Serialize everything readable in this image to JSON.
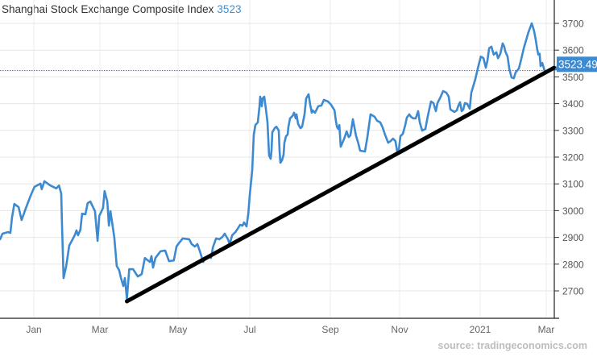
{
  "chart_data": {
    "type": "line",
    "title": "Shanghai Stock Exchange Composite Index",
    "title_value": "3523",
    "last_value_label": "3523.49",
    "last_value": 3523.49,
    "source": "source: tradingeconomics.com",
    "x_unit": "months since Jan 2020",
    "x_ticks": [
      {
        "m": 0,
        "label": "Jan"
      },
      {
        "m": 2,
        "label": "Mar"
      },
      {
        "m": 4,
        "label": "May"
      },
      {
        "m": 6,
        "label": "Jul"
      },
      {
        "m": 8,
        "label": "Sep"
      },
      {
        "m": 10,
        "label": "Nov"
      },
      {
        "m": 12,
        "label": "2021"
      },
      {
        "m": 14,
        "label": "Mar"
      }
    ],
    "y_ticks": [
      2700,
      2800,
      2900,
      3000,
      3100,
      3200,
      3300,
      3400,
      3500,
      3600,
      3700
    ],
    "ylim": [
      2596,
      3790
    ],
    "grid": true,
    "colors": {
      "series": "#3d8ad0",
      "trend": "#000000",
      "last_line": "#4d4dff",
      "label_bg": "#3d8ad0"
    },
    "series": [
      {
        "name": "Shanghai Composite",
        "points": [
          [
            -1.02,
            2893
          ],
          [
            -0.95,
            2914
          ],
          [
            -0.78,
            2920
          ],
          [
            -0.71,
            2917
          ],
          [
            -0.66,
            2974
          ],
          [
            -0.59,
            3025
          ],
          [
            -0.46,
            3013
          ],
          [
            -0.37,
            2965
          ],
          [
            -0.24,
            3010
          ],
          [
            -0.1,
            3055
          ],
          [
            0.02,
            3089
          ],
          [
            0.2,
            3101
          ],
          [
            0.24,
            3080
          ],
          [
            0.32,
            3110
          ],
          [
            0.49,
            3095
          ],
          [
            0.68,
            3083
          ],
          [
            0.76,
            3094
          ],
          [
            0.83,
            3064
          ],
          [
            0.85,
            2965
          ],
          [
            0.9,
            2748
          ],
          [
            0.98,
            2793
          ],
          [
            1.07,
            2869
          ],
          [
            1.24,
            2908
          ],
          [
            1.29,
            2926
          ],
          [
            1.34,
            2908
          ],
          [
            1.41,
            2929
          ],
          [
            1.46,
            2989
          ],
          [
            1.56,
            2986
          ],
          [
            1.63,
            3028
          ],
          [
            1.71,
            3034
          ],
          [
            1.85,
            2998
          ],
          [
            1.93,
            2887
          ],
          [
            1.98,
            2980
          ],
          [
            2.08,
            3010
          ],
          [
            2.12,
            3073
          ],
          [
            2.19,
            3034
          ],
          [
            2.23,
            2944
          ],
          [
            2.27,
            2998
          ],
          [
            2.31,
            2959
          ],
          [
            2.37,
            2899
          ],
          [
            2.43,
            2793
          ],
          [
            2.49,
            2778
          ],
          [
            2.54,
            2748
          ],
          [
            2.6,
            2718
          ],
          [
            2.64,
            2748
          ],
          [
            2.69,
            2670
          ],
          [
            2.75,
            2781
          ],
          [
            2.85,
            2781
          ],
          [
            2.97,
            2754
          ],
          [
            3.07,
            2763
          ],
          [
            3.15,
            2823
          ],
          [
            3.28,
            2808
          ],
          [
            3.32,
            2830
          ],
          [
            3.36,
            2787
          ],
          [
            3.42,
            2823
          ],
          [
            3.55,
            2848
          ],
          [
            3.67,
            2851
          ],
          [
            3.77,
            2811
          ],
          [
            3.89,
            2814
          ],
          [
            3.96,
            2866
          ],
          [
            4.02,
            2878
          ],
          [
            4.13,
            2896
          ],
          [
            4.31,
            2893
          ],
          [
            4.38,
            2875
          ],
          [
            4.47,
            2866
          ],
          [
            4.54,
            2875
          ],
          [
            4.61,
            2848
          ],
          [
            4.7,
            2808
          ],
          [
            4.76,
            2820
          ],
          [
            4.88,
            2832
          ],
          [
            4.92,
            2823
          ],
          [
            4.97,
            2862
          ],
          [
            5.06,
            2896
          ],
          [
            5.15,
            2893
          ],
          [
            5.24,
            2902
          ],
          [
            5.3,
            2914
          ],
          [
            5.39,
            2893
          ],
          [
            5.44,
            2875
          ],
          [
            5.51,
            2908
          ],
          [
            5.6,
            2920
          ],
          [
            5.66,
            2932
          ],
          [
            5.73,
            2947
          ],
          [
            5.8,
            2944
          ],
          [
            5.84,
            2956
          ],
          [
            5.91,
            2941
          ],
          [
            5.96,
            2989
          ],
          [
            6.0,
            3058
          ],
          [
            6.06,
            3149
          ],
          [
            6.1,
            3284
          ],
          [
            6.14,
            3320
          ],
          [
            6.2,
            3330
          ],
          [
            6.24,
            3387
          ],
          [
            6.26,
            3426
          ],
          [
            6.3,
            3390
          ],
          [
            6.32,
            3420
          ],
          [
            6.36,
            3426
          ],
          [
            6.4,
            3381
          ],
          [
            6.44,
            3330
          ],
          [
            6.48,
            3206
          ],
          [
            6.52,
            3194
          ],
          [
            6.54,
            3224
          ],
          [
            6.56,
            3293
          ],
          [
            6.62,
            3308
          ],
          [
            6.66,
            3314
          ],
          [
            6.72,
            3299
          ],
          [
            6.74,
            3224
          ],
          [
            6.76,
            3179
          ],
          [
            6.8,
            3188
          ],
          [
            6.84,
            3209
          ],
          [
            6.86,
            3254
          ],
          [
            6.9,
            3278
          ],
          [
            6.94,
            3284
          ],
          [
            6.96,
            3314
          ],
          [
            7.0,
            3345
          ],
          [
            7.06,
            3354
          ],
          [
            7.1,
            3366
          ],
          [
            7.14,
            3345
          ],
          [
            7.16,
            3360
          ],
          [
            7.2,
            3324
          ],
          [
            7.26,
            3308
          ],
          [
            7.3,
            3314
          ],
          [
            7.36,
            3360
          ],
          [
            7.4,
            3420
          ],
          [
            7.46,
            3435
          ],
          [
            7.5,
            3396
          ],
          [
            7.54,
            3366
          ],
          [
            7.56,
            3375
          ],
          [
            7.62,
            3366
          ],
          [
            7.7,
            3390
          ],
          [
            7.78,
            3393
          ],
          [
            7.84,
            3414
          ],
          [
            7.94,
            3408
          ],
          [
            8.02,
            3396
          ],
          [
            8.12,
            3375
          ],
          [
            8.16,
            3336
          ],
          [
            8.19,
            3314
          ],
          [
            8.23,
            3305
          ],
          [
            8.26,
            3320
          ],
          [
            8.3,
            3239
          ],
          [
            8.4,
            3269
          ],
          [
            8.47,
            3296
          ],
          [
            8.53,
            3275
          ],
          [
            8.58,
            3281
          ],
          [
            8.65,
            3342
          ],
          [
            8.74,
            3281
          ],
          [
            8.81,
            3251
          ],
          [
            8.86,
            3224
          ],
          [
            9.0,
            3221
          ],
          [
            9.07,
            3275
          ],
          [
            9.16,
            3360
          ],
          [
            9.28,
            3351
          ],
          [
            9.35,
            3336
          ],
          [
            9.44,
            3330
          ],
          [
            9.51,
            3311
          ],
          [
            9.58,
            3284
          ],
          [
            9.67,
            3254
          ],
          [
            9.74,
            3260
          ],
          [
            9.81,
            3269
          ],
          [
            9.88,
            3260
          ],
          [
            9.93,
            3221
          ],
          [
            9.98,
            3230
          ],
          [
            10.02,
            3278
          ],
          [
            10.08,
            3287
          ],
          [
            10.14,
            3320
          ],
          [
            10.18,
            3348
          ],
          [
            10.24,
            3360
          ],
          [
            10.28,
            3351
          ],
          [
            10.34,
            3345
          ],
          [
            10.4,
            3345
          ],
          [
            10.46,
            3372
          ],
          [
            10.5,
            3330
          ],
          [
            10.56,
            3299
          ],
          [
            10.64,
            3305
          ],
          [
            10.7,
            3354
          ],
          [
            10.78,
            3408
          ],
          [
            10.84,
            3402
          ],
          [
            10.9,
            3372
          ],
          [
            10.94,
            3402
          ],
          [
            11.02,
            3426
          ],
          [
            11.08,
            3447
          ],
          [
            11.16,
            3441
          ],
          [
            11.22,
            3426
          ],
          [
            11.26,
            3378
          ],
          [
            11.36,
            3369
          ],
          [
            11.42,
            3375
          ],
          [
            11.46,
            3393
          ],
          [
            11.5,
            3405
          ],
          [
            11.54,
            3372
          ],
          [
            11.58,
            3378
          ],
          [
            11.62,
            3402
          ],
          [
            11.68,
            3399
          ],
          [
            11.74,
            3381
          ],
          [
            11.78,
            3441
          ],
          [
            11.88,
            3492
          ],
          [
            11.94,
            3531
          ],
          [
            12.02,
            3576
          ],
          [
            12.1,
            3570
          ],
          [
            12.17,
            3534
          ],
          [
            12.22,
            3561
          ],
          [
            12.27,
            3607
          ],
          [
            12.34,
            3613
          ],
          [
            12.41,
            3583
          ],
          [
            12.49,
            3592
          ],
          [
            12.54,
            3570
          ],
          [
            12.61,
            3586
          ],
          [
            12.68,
            3625
          ],
          [
            12.73,
            3613
          ],
          [
            12.76,
            3595
          ],
          [
            12.83,
            3576
          ],
          [
            12.88,
            3531
          ],
          [
            12.95,
            3498
          ],
          [
            13.02,
            3495
          ],
          [
            13.07,
            3516
          ],
          [
            13.17,
            3531
          ],
          [
            13.24,
            3564
          ],
          [
            13.32,
            3607
          ],
          [
            13.39,
            3637
          ],
          [
            13.46,
            3667
          ],
          [
            13.56,
            3700
          ],
          [
            13.63,
            3673
          ],
          [
            13.68,
            3640
          ],
          [
            13.73,
            3601
          ],
          [
            13.76,
            3583
          ],
          [
            13.8,
            3586
          ],
          [
            13.83,
            3540
          ],
          [
            13.88,
            3552
          ],
          [
            13.95,
            3523.49
          ]
        ]
      }
    ],
    "trendline": {
      "start": [
        2.69,
        2661
      ],
      "end": [
        14.24,
        3534
      ]
    }
  }
}
